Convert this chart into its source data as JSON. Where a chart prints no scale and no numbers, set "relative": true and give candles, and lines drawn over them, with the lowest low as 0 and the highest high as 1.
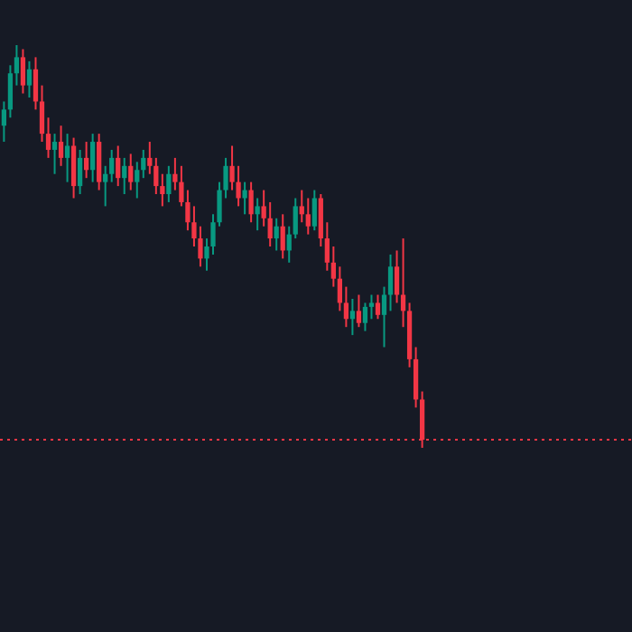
{
  "chart_data": {
    "type": "candlestick",
    "relative": true,
    "categories": [
      null,
      null,
      null,
      null,
      null,
      null,
      null,
      null,
      null,
      null,
      null,
      null,
      null,
      null,
      null,
      null,
      null,
      null,
      null,
      null,
      null,
      null,
      null,
      null,
      null,
      null,
      null,
      null,
      null,
      null,
      null,
      null,
      null,
      null,
      null,
      null,
      null,
      null,
      null,
      null,
      null,
      null,
      null,
      null,
      null,
      null,
      null,
      null,
      null,
      null,
      null,
      null,
      null,
      null,
      null,
      null,
      null,
      null,
      null,
      null,
      null,
      null,
      null,
      null,
      null,
      null,
      null
    ],
    "ohlc": [
      [
        0.8,
        0.86,
        0.76,
        0.84
      ],
      [
        0.84,
        0.95,
        0.82,
        0.93
      ],
      [
        0.93,
        1.0,
        0.9,
        0.97
      ],
      [
        0.97,
        0.99,
        0.88,
        0.9
      ],
      [
        0.9,
        0.96,
        0.87,
        0.94
      ],
      [
        0.94,
        0.97,
        0.84,
        0.86
      ],
      [
        0.86,
        0.9,
        0.76,
        0.78
      ],
      [
        0.78,
        0.82,
        0.72,
        0.74
      ],
      [
        0.74,
        0.78,
        0.68,
        0.76
      ],
      [
        0.76,
        0.8,
        0.7,
        0.72
      ],
      [
        0.72,
        0.78,
        0.66,
        0.75
      ],
      [
        0.75,
        0.77,
        0.62,
        0.65
      ],
      [
        0.65,
        0.74,
        0.63,
        0.72
      ],
      [
        0.72,
        0.76,
        0.67,
        0.69
      ],
      [
        0.69,
        0.78,
        0.66,
        0.76
      ],
      [
        0.76,
        0.78,
        0.64,
        0.66
      ],
      [
        0.66,
        0.7,
        0.6,
        0.68
      ],
      [
        0.68,
        0.74,
        0.66,
        0.72
      ],
      [
        0.72,
        0.75,
        0.65,
        0.67
      ],
      [
        0.67,
        0.72,
        0.63,
        0.7
      ],
      [
        0.7,
        0.73,
        0.64,
        0.66
      ],
      [
        0.66,
        0.71,
        0.62,
        0.69
      ],
      [
        0.69,
        0.74,
        0.67,
        0.72
      ],
      [
        0.72,
        0.76,
        0.68,
        0.7
      ],
      [
        0.7,
        0.72,
        0.63,
        0.65
      ],
      [
        0.65,
        0.68,
        0.6,
        0.63
      ],
      [
        0.63,
        0.7,
        0.61,
        0.68
      ],
      [
        0.68,
        0.72,
        0.64,
        0.66
      ],
      [
        0.66,
        0.7,
        0.6,
        0.61
      ],
      [
        0.61,
        0.64,
        0.54,
        0.56
      ],
      [
        0.56,
        0.6,
        0.5,
        0.52
      ],
      [
        0.52,
        0.55,
        0.45,
        0.47
      ],
      [
        0.47,
        0.52,
        0.44,
        0.5
      ],
      [
        0.5,
        0.58,
        0.48,
        0.56
      ],
      [
        0.56,
        0.66,
        0.55,
        0.64
      ],
      [
        0.64,
        0.72,
        0.62,
        0.7
      ],
      [
        0.7,
        0.75,
        0.64,
        0.66
      ],
      [
        0.66,
        0.7,
        0.6,
        0.62
      ],
      [
        0.62,
        0.66,
        0.58,
        0.64
      ],
      [
        0.64,
        0.66,
        0.56,
        0.58
      ],
      [
        0.58,
        0.62,
        0.54,
        0.6
      ],
      [
        0.6,
        0.64,
        0.55,
        0.57
      ],
      [
        0.57,
        0.61,
        0.5,
        0.52
      ],
      [
        0.52,
        0.57,
        0.49,
        0.55
      ],
      [
        0.55,
        0.58,
        0.47,
        0.49
      ],
      [
        0.49,
        0.55,
        0.46,
        0.53
      ],
      [
        0.53,
        0.62,
        0.52,
        0.6
      ],
      [
        0.6,
        0.64,
        0.56,
        0.58
      ],
      [
        0.58,
        0.62,
        0.53,
        0.55
      ],
      [
        0.55,
        0.64,
        0.54,
        0.62
      ],
      [
        0.62,
        0.63,
        0.5,
        0.52
      ],
      [
        0.52,
        0.56,
        0.44,
        0.46
      ],
      [
        0.46,
        0.5,
        0.4,
        0.42
      ],
      [
        0.42,
        0.45,
        0.34,
        0.36
      ],
      [
        0.36,
        0.4,
        0.3,
        0.32
      ],
      [
        0.32,
        0.37,
        0.28,
        0.34
      ],
      [
        0.34,
        0.38,
        0.3,
        0.31
      ],
      [
        0.31,
        0.36,
        0.29,
        0.35
      ],
      [
        0.35,
        0.38,
        0.32,
        0.36
      ],
      [
        0.36,
        0.38,
        0.32,
        0.33
      ],
      [
        0.33,
        0.4,
        0.25,
        0.38
      ],
      [
        0.38,
        0.48,
        0.34,
        0.45
      ],
      [
        0.45,
        0.49,
        0.36,
        0.38
      ],
      [
        0.38,
        0.52,
        0.3,
        0.34
      ],
      [
        0.34,
        0.36,
        0.2,
        0.22
      ],
      [
        0.22,
        0.25,
        0.1,
        0.12
      ],
      [
        0.12,
        0.14,
        0.0,
        0.02
      ]
    ],
    "colors": [
      "#089981",
      "#089981",
      "#089981",
      "#f23645",
      "#089981",
      "#f23645",
      "#f23645",
      "#f23645",
      "#089981",
      "#f23645",
      "#089981",
      "#f23645",
      "#089981",
      "#f23645",
      "#089981",
      "#f23645",
      "#089981",
      "#089981",
      "#f23645",
      "#089981",
      "#f23645",
      "#089981",
      "#089981",
      "#f23645",
      "#f23645",
      "#f23645",
      "#089981",
      "#f23645",
      "#f23645",
      "#f23645",
      "#f23645",
      "#f23645",
      "#089981",
      "#089981",
      "#089981",
      "#089981",
      "#f23645",
      "#f23645",
      "#089981",
      "#f23645",
      "#089981",
      "#f23645",
      "#f23645",
      "#089981",
      "#f23645",
      "#089981",
      "#089981",
      "#f23645",
      "#f23645",
      "#089981",
      "#f23645",
      "#f23645",
      "#f23645",
      "#f23645",
      "#f23645",
      "#089981",
      "#f23645",
      "#089981",
      "#089981",
      "#f23645",
      "#089981",
      "#089981",
      "#f23645",
      "#f23645",
      "#f23645",
      "#f23645",
      "#f23645"
    ],
    "ref_lines": [
      {
        "axis": "y",
        "value": 0.02,
        "color": "#f23645",
        "line_style": "dotted"
      }
    ]
  }
}
